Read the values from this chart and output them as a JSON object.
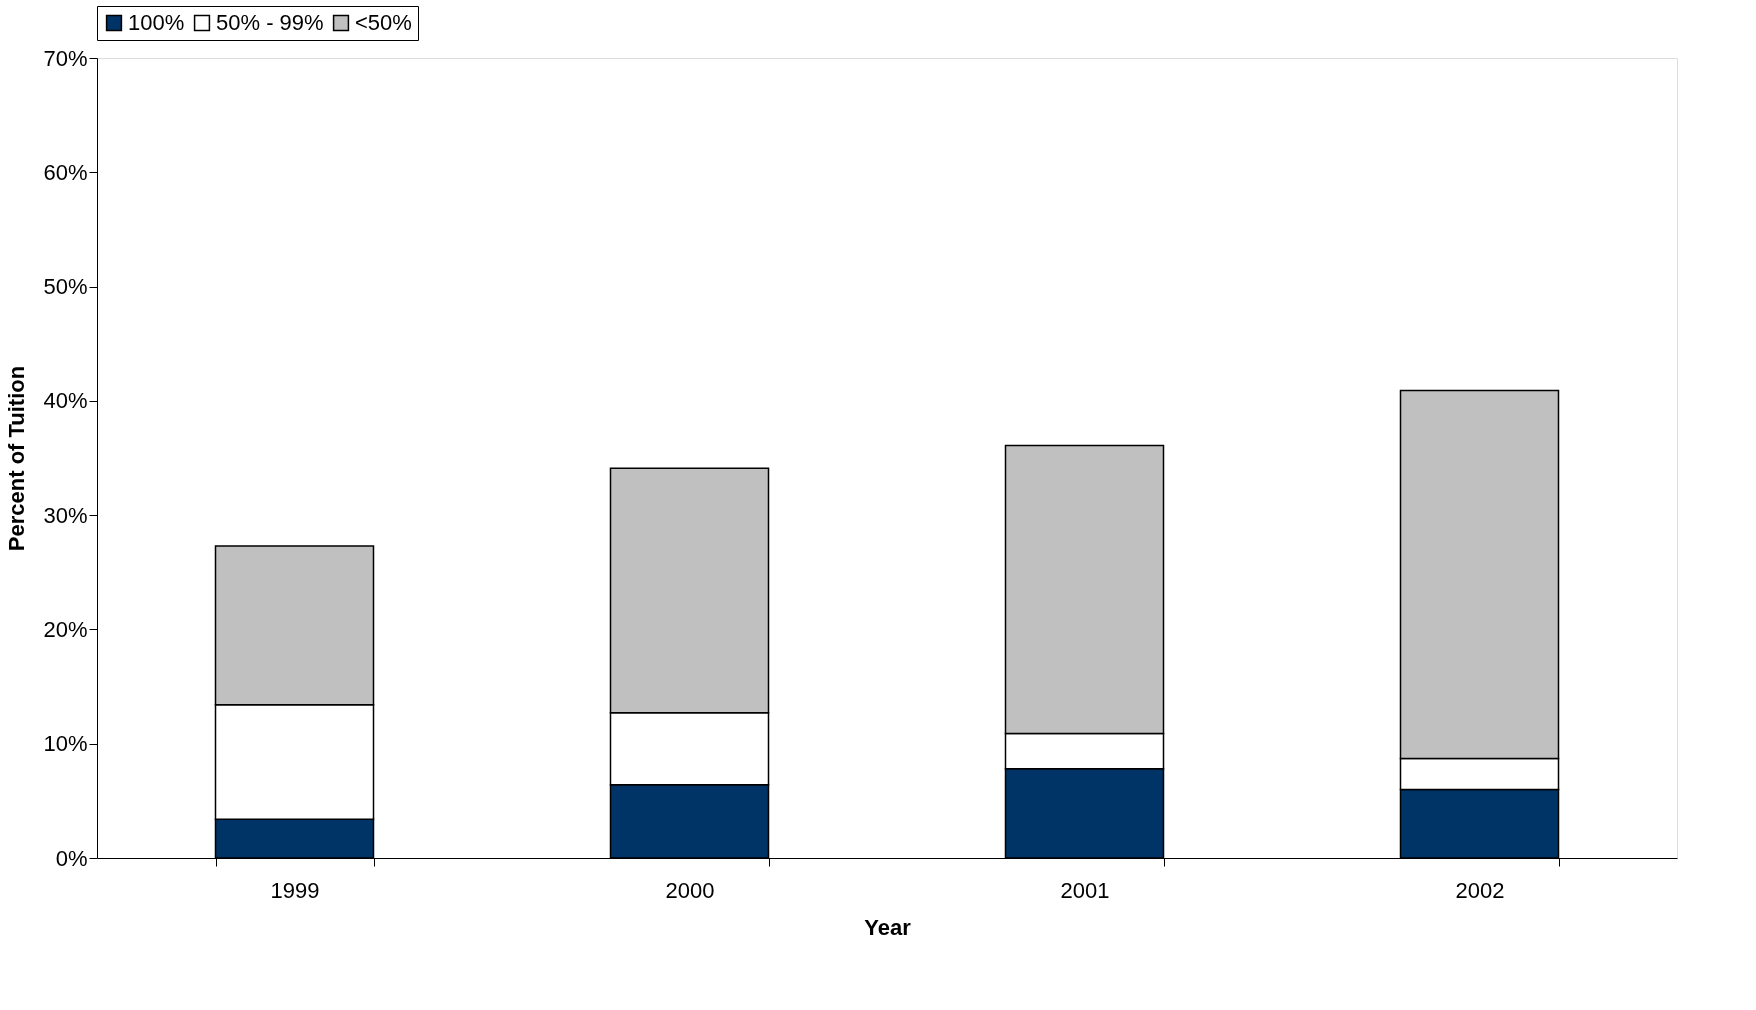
{
  "chart_data": {
    "type": "bar",
    "stacked": true,
    "xlabel": "Year",
    "ylabel": "Percent of Tuition",
    "categories": [
      "1999",
      "2000",
      "2001",
      "2002"
    ],
    "series": [
      {
        "name": "100%",
        "color": "#003366",
        "values": [
          3.4,
          6.4,
          7.8,
          6.0
        ]
      },
      {
        "name": "50% - 99%",
        "color": "#ffffff",
        "values": [
          10.0,
          6.3,
          3.1,
          2.7
        ]
      },
      {
        "name": "<50%",
        "color": "#c0c0c0",
        "values": [
          13.9,
          21.4,
          25.2,
          32.2
        ]
      }
    ],
    "ylim": [
      0,
      70
    ],
    "yticks": [
      {
        "value": 0,
        "label": "0%"
      },
      {
        "value": 10,
        "label": "10%"
      },
      {
        "value": 20,
        "label": "20%"
      },
      {
        "value": 30,
        "label": "30%"
      },
      {
        "value": 40,
        "label": "40%"
      },
      {
        "value": 50,
        "label": "50%"
      },
      {
        "value": 60,
        "label": "60%"
      },
      {
        "value": 70,
        "label": "70%"
      }
    ],
    "legend": "top",
    "grid": false
  }
}
